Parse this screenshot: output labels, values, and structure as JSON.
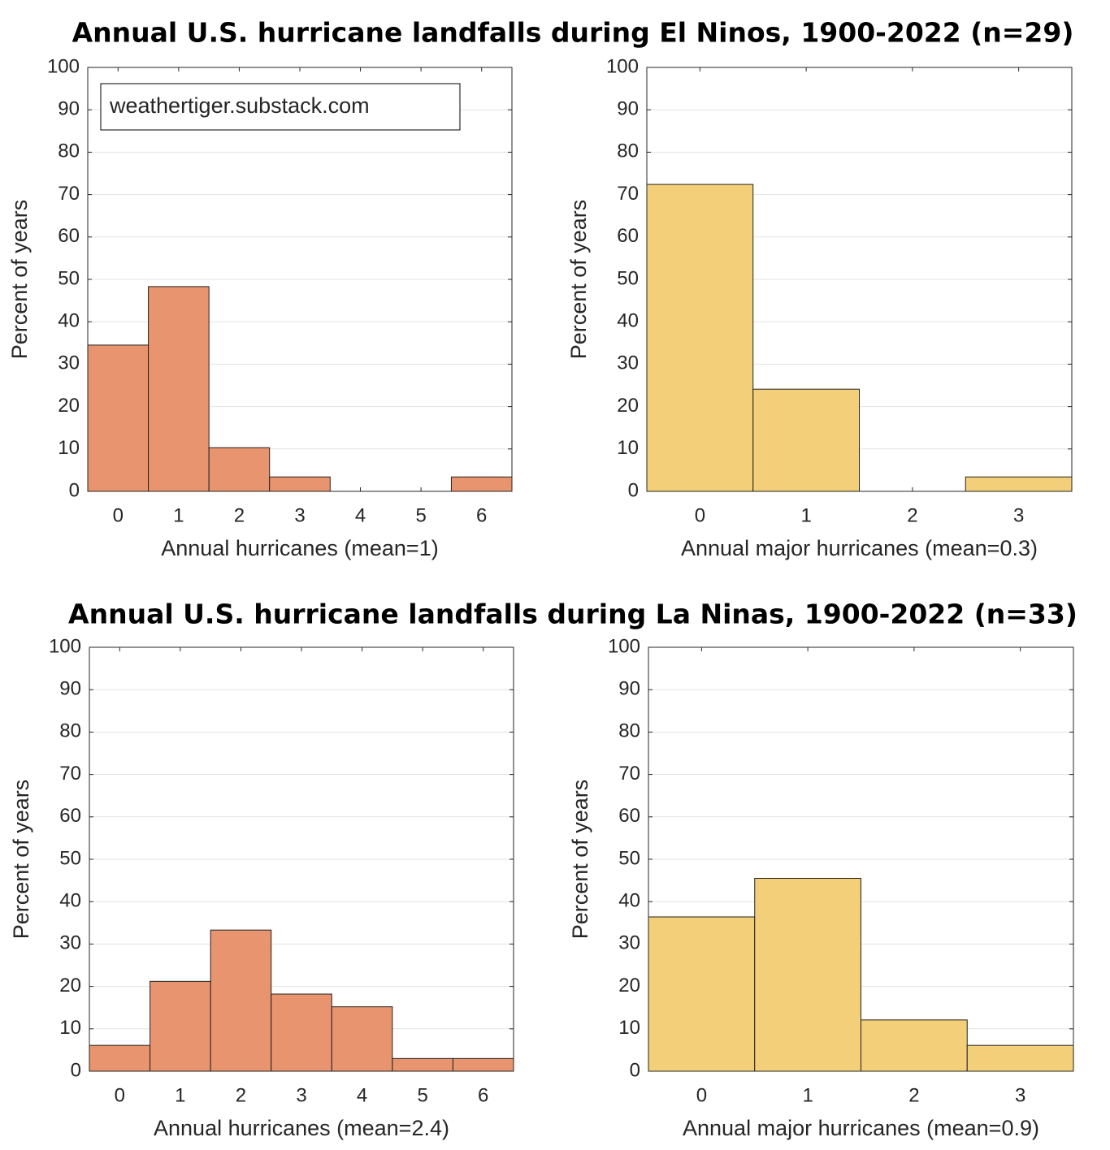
{
  "chart_data": [
    {
      "type": "histogram",
      "title": "Annual U.S. hurricane landfalls during El Ninos, 1900-2022 (n=29)",
      "annotation": "weathertiger.substack.com",
      "xlabel": "Annual hurricanes (mean=1)",
      "ylabel": "Percent of years",
      "color": "#e8956f",
      "bins": [
        -0.5,
        0.5,
        1.5,
        2.5,
        3.5,
        4.5,
        5.5,
        6.5
      ],
      "values": [
        34.5,
        48.3,
        10.3,
        3.4,
        0,
        0,
        3.4
      ],
      "xlim": [
        -0.5,
        6.5
      ],
      "xticks": [
        0,
        1,
        2,
        3,
        4,
        5,
        6
      ],
      "ylim": [
        0,
        100
      ],
      "yticks": [
        0,
        10,
        20,
        30,
        40,
        50,
        60,
        70,
        80,
        90,
        100
      ],
      "grid": true
    },
    {
      "type": "histogram",
      "xlabel": "Annual major hurricanes (mean=0.3)",
      "ylabel": "Percent of years",
      "color": "#f2cf78",
      "bins": [
        -0.5,
        0.5,
        1.5,
        2.5,
        3.5
      ],
      "values": [
        72.4,
        24.1,
        0,
        3.4
      ],
      "xlim": [
        -0.5,
        3.5
      ],
      "xticks": [
        0,
        1,
        2,
        3
      ],
      "ylim": [
        0,
        100
      ],
      "yticks": [
        0,
        10,
        20,
        30,
        40,
        50,
        60,
        70,
        80,
        90,
        100
      ],
      "grid": true
    },
    {
      "type": "histogram",
      "title": "Annual U.S. hurricane landfalls during La Ninas, 1900-2022 (n=33)",
      "xlabel": "Annual hurricanes (mean=2.4)",
      "ylabel": "Percent of years",
      "color": "#e8956f",
      "bins": [
        -0.5,
        0.5,
        1.5,
        2.5,
        3.5,
        4.5,
        5.5,
        6.5
      ],
      "values": [
        6.1,
        21.2,
        33.3,
        18.2,
        15.2,
        3.0,
        3.0
      ],
      "xlim": [
        -0.5,
        6.5
      ],
      "xticks": [
        0,
        1,
        2,
        3,
        4,
        5,
        6
      ],
      "ylim": [
        0,
        100
      ],
      "yticks": [
        0,
        10,
        20,
        30,
        40,
        50,
        60,
        70,
        80,
        90,
        100
      ],
      "grid": true
    },
    {
      "type": "histogram",
      "xlabel": "Annual major hurricanes (mean=0.9)",
      "ylabel": "Percent of years",
      "color": "#f2cf78",
      "bins": [
        -0.5,
        0.5,
        1.5,
        2.5,
        3.5
      ],
      "values": [
        36.4,
        45.5,
        12.1,
        6.1
      ],
      "xlim": [
        -0.5,
        3.5
      ],
      "xticks": [
        0,
        1,
        2,
        3
      ],
      "ylim": [
        0,
        100
      ],
      "yticks": [
        0,
        10,
        20,
        30,
        40,
        50,
        60,
        70,
        80,
        90,
        100
      ],
      "grid": true
    }
  ]
}
